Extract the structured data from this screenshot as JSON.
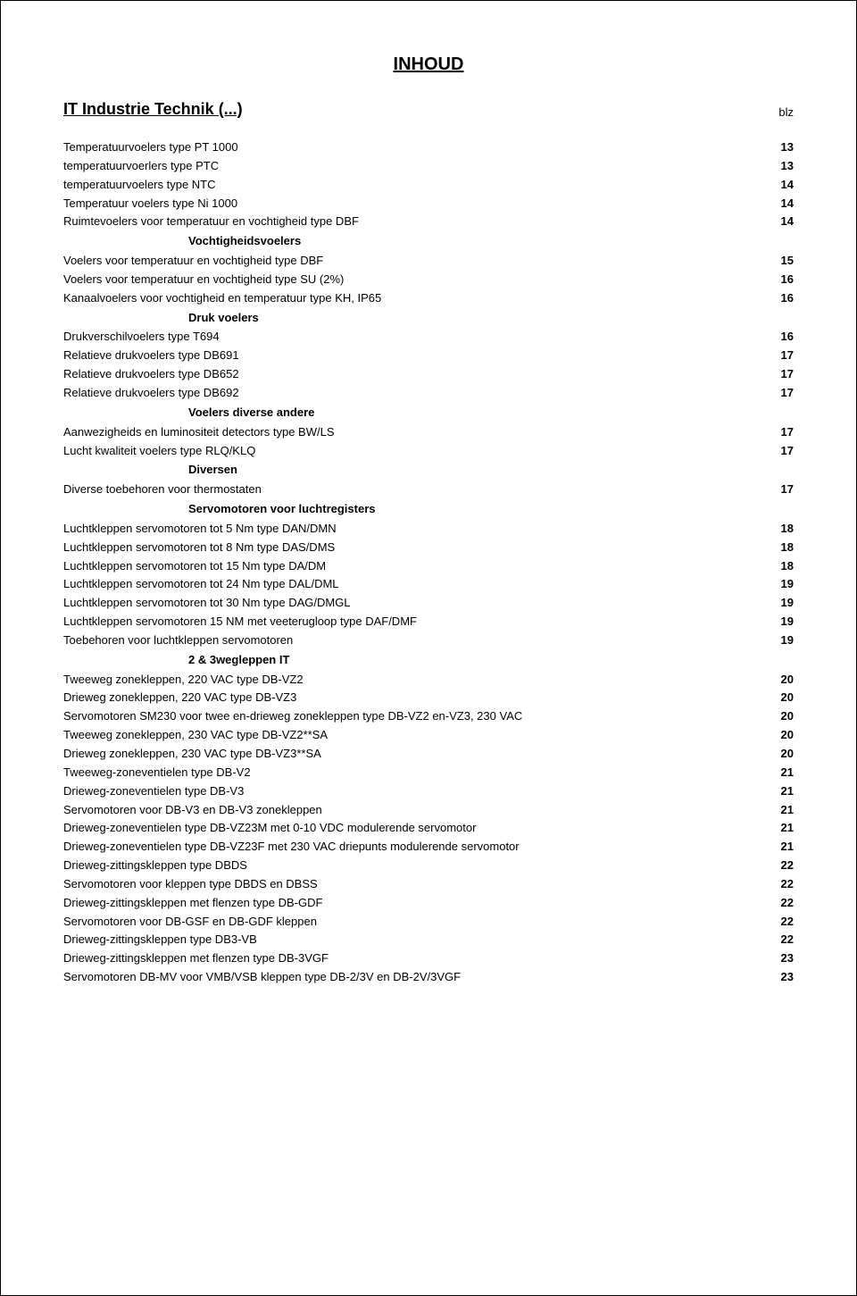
{
  "title": "INHOUD",
  "subtitle": "IT Industrie Technik (...)",
  "page_label": "blz",
  "colors": {
    "text": "#000000",
    "background": "#ffffff",
    "border": "#000000"
  },
  "typography": {
    "base_font_size_pt": 10,
    "title_font_size_pt": 15,
    "subtitle_font_size_pt": 14,
    "font_family": "Arial"
  },
  "sections": [
    {
      "heading": null,
      "items": [
        {
          "label": "Temperatuurvoelers type PT 1000",
          "page": "13"
        },
        {
          "label": "temperatuurvoerlers type PTC",
          "page": "13"
        },
        {
          "label": "temperatuurvoelers type NTC",
          "page": "14"
        },
        {
          "label": "Temperatuur voelers type Ni 1000",
          "page": "14"
        },
        {
          "label": "Ruimtevoelers voor temperatuur en vochtigheid type DBF",
          "page": "14"
        }
      ]
    },
    {
      "heading": "Vochtigheidsvoelers",
      "items": [
        {
          "label": "Voelers voor temperatuur en vochtigheid type DBF",
          "page": "15"
        },
        {
          "label": "Voelers voor temperatuur en vochtigheid type SU (2%)",
          "page": "16"
        },
        {
          "label": "Kanaalvoelers voor vochtigheid en temperatuur  type KH, IP65",
          "page": "16"
        }
      ]
    },
    {
      "heading": "Druk voelers",
      "items": [
        {
          "label": "Drukverschilvoelers type T694",
          "page": "16"
        },
        {
          "label": "Relatieve drukvoelers type DB691",
          "page": "17"
        },
        {
          "label": "Relatieve drukvoelers type DB652",
          "page": "17"
        },
        {
          "label": "Relatieve drukvoelers type DB692",
          "page": "17"
        }
      ]
    },
    {
      "heading": "Voelers diverse andere",
      "items": [
        {
          "label": "Aanwezigheids en luminositeit detectors type BW/LS",
          "page": "17"
        },
        {
          "label": "Lucht kwaliteit voelers type RLQ/KLQ",
          "page": "17"
        }
      ]
    },
    {
      "heading": "Diversen",
      "items": [
        {
          "label": "Diverse toebehoren voor thermostaten",
          "page": "17"
        }
      ]
    },
    {
      "heading": "Servomotoren voor luchtregisters",
      "items": [
        {
          "label": "Luchtkleppen servomotoren tot 5 Nm type DAN/DMN",
          "page": "18"
        },
        {
          "label": "Luchtkleppen servomotoren tot 8 Nm type DAS/DMS",
          "page": "18"
        },
        {
          "label": "Luchtkleppen servomotoren tot 15 Nm type DA/DM",
          "page": "18"
        },
        {
          "label": "Luchtkleppen servomotoren tot 24 Nm type DAL/DML",
          "page": "19"
        },
        {
          "label": "Luchtkleppen servomotoren tot 30 Nm type DAG/DMGL",
          "page": "19"
        },
        {
          "label": "Luchtkleppen servomotoren 15 NM met veeterugloop type DAF/DMF",
          "page": "19"
        },
        {
          "label": "Toebehoren voor luchtkleppen servomotoren",
          "page": "19"
        }
      ]
    },
    {
      "heading": "2 & 3wegleppen IT",
      "items": [
        {
          "label": "Tweeweg zonekleppen, 220 VAC type DB-VZ2",
          "page": "20"
        },
        {
          "label": "Drieweg zonekleppen, 220 VAC type DB-VZ3",
          "page": "20"
        },
        {
          "label": "Servomotoren SM230 voor twee en-drieweg zonekleppen type  DB-VZ2 en-VZ3, 230 VAC",
          "page": "20"
        },
        {
          "label": "Tweeweg zonekleppen, 230 VAC type DB-VZ2**SA",
          "page": "20"
        },
        {
          "label": "Drieweg zonekleppen, 230 VAC type DB-VZ3**SA",
          "page": "20"
        },
        {
          "label": "Tweeweg-zoneventielen type DB-V2",
          "page": "21"
        },
        {
          "label": "Drieweg-zoneventielen type DB-V3",
          "page": "21"
        },
        {
          "label": "Servomotoren voor DB-V3 en DB-V3 zonekleppen",
          "page": "21"
        },
        {
          "label": "Drieweg-zoneventielen type DB-VZ23M met 0-10 VDC modulerende servomotor",
          "page": "21"
        },
        {
          "label": "Drieweg-zoneventielen type DB-VZ23F met 230 VAC driepunts  modulerende servomotor",
          "page": "21"
        },
        {
          "label": "Drieweg-zittingskleppen type DBDS",
          "page": "22"
        },
        {
          "label": "Servomotoren voor  kleppen type DBDS en DBSS",
          "page": "22"
        },
        {
          "label": "Drieweg-zittingskleppen met flenzen type DB-GDF",
          "page": "22"
        },
        {
          "label": "Servomotoren voor DB-GSF en DB-GDF kleppen",
          "page": "22"
        },
        {
          "label": "Drieweg-zittingskleppen type DB3-VB",
          "page": "22"
        },
        {
          "label": "Drieweg-zittingskleppen met flenzen type DB-3VGF",
          "page": "23"
        },
        {
          "label": "Servomotoren DB-MV voor VMB/VSB kleppen type DB-2/3V en DB-2V/3VGF",
          "page": "23"
        }
      ]
    }
  ]
}
